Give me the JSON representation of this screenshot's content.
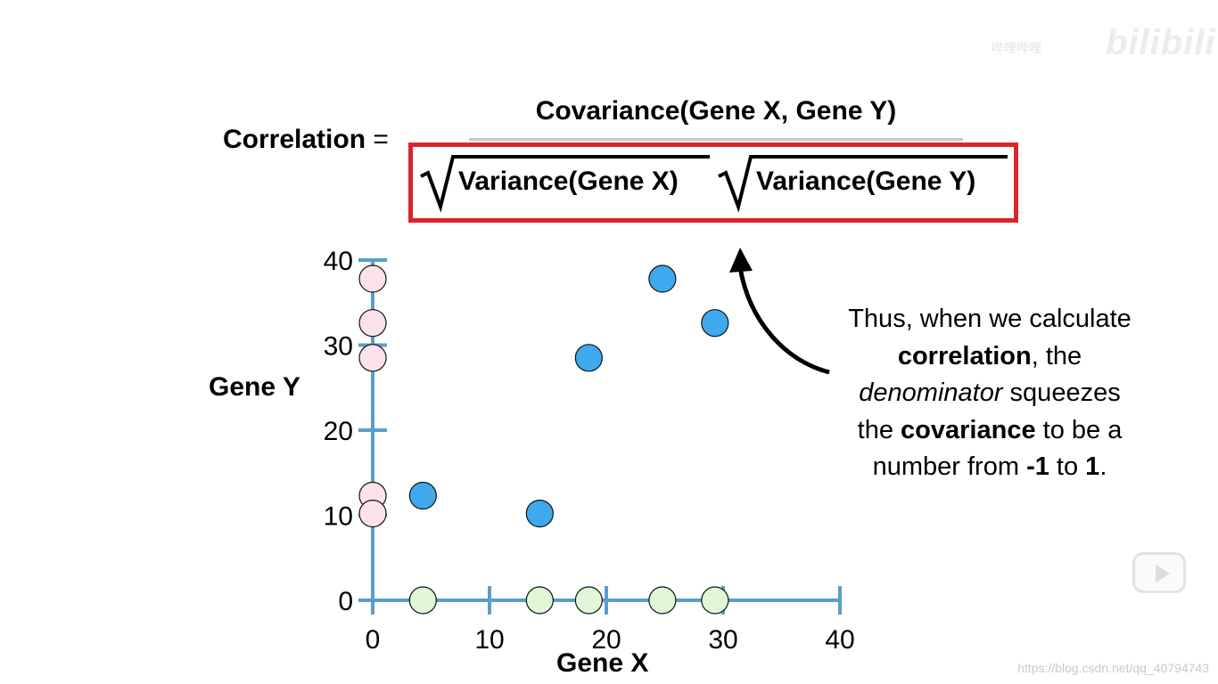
{
  "formula": {
    "label": "Correlation",
    "equals": "=",
    "numerator": "Covariance(Gene X, Gene Y)",
    "denominator_term_1": "Variance(Gene X)",
    "denominator_term_2": "Variance(Gene Y)",
    "highlight_color": "#d8262a"
  },
  "note": {
    "line1": "Thus, when we calculate",
    "line2_bold": "correlation",
    "line2_rest": ", the",
    "line3_italic": "denominator",
    "line3_rest": " squeezes",
    "line4_pre": "the ",
    "line4_bold": "covariance",
    "line4_post": " to be a",
    "line5_pre": "number from ",
    "line5_bold1": "-1",
    "line5_mid": " to ",
    "line5_bold2": "1",
    "line5_end": "."
  },
  "watermark": {
    "brand": "bilibili",
    "brand_small": "哔哩哔哩",
    "url": "https://blog.csdn.net/qq_40794743"
  },
  "chart_data": {
    "type": "scatter",
    "xlabel": "Gene X",
    "ylabel": "Gene Y",
    "xlim": [
      0,
      40
    ],
    "ylim": [
      0,
      40
    ],
    "xticks": [
      0,
      10,
      20,
      30,
      40
    ],
    "yticks": [
      0,
      10,
      20,
      30,
      40
    ],
    "axis_color": "#5a9ec9",
    "series": [
      {
        "name": "data points",
        "color": "#3fa9ee",
        "points": [
          [
            4.3,
            12.3
          ],
          [
            14.3,
            10.2
          ],
          [
            18.5,
            28.5
          ],
          [
            24.8,
            37.8
          ],
          [
            29.3,
            32.6
          ]
        ]
      },
      {
        "name": "projection on y-axis",
        "color": "#fde2ec",
        "points": [
          [
            0,
            12.3
          ],
          [
            0,
            10.2
          ],
          [
            0,
            28.5
          ],
          [
            0,
            37.8
          ],
          [
            0,
            32.6
          ]
        ]
      },
      {
        "name": "projection on x-axis",
        "color": "#e0f6d6",
        "points": [
          [
            4.3,
            0
          ],
          [
            14.3,
            0
          ],
          [
            18.5,
            0
          ],
          [
            24.8,
            0
          ],
          [
            29.3,
            0
          ]
        ]
      }
    ]
  }
}
